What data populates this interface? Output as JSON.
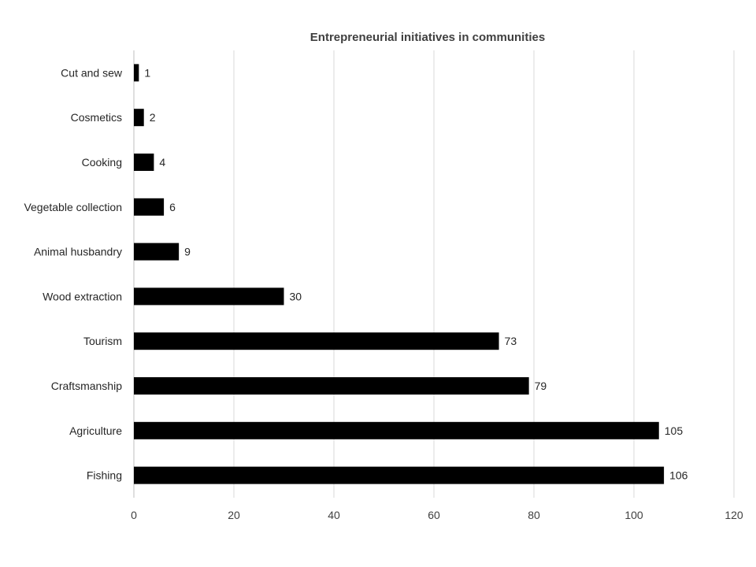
{
  "chart_data": {
    "type": "bar",
    "orientation": "horizontal",
    "title": "Entrepreneurial initiatives in communities",
    "categories": [
      "Cut and sew",
      "Cosmetics",
      "Cooking",
      "Vegetable collection",
      "Animal husbandry",
      "Wood extraction",
      "Tourism",
      "Craftsmanship",
      "Agriculture",
      "Fishing"
    ],
    "values": [
      1,
      2,
      4,
      6,
      9,
      30,
      73,
      79,
      105,
      106
    ],
    "data_labels": [
      "1",
      "2",
      "4",
      "6",
      "9",
      "30",
      "73",
      "79",
      "105",
      "106"
    ],
    "xticks": [
      "0",
      "20",
      "40",
      "60",
      "80",
      "100",
      "120"
    ],
    "xlim": [
      0,
      120
    ],
    "grid": "vertical",
    "legend": "none",
    "bar_color": "#000000"
  }
}
